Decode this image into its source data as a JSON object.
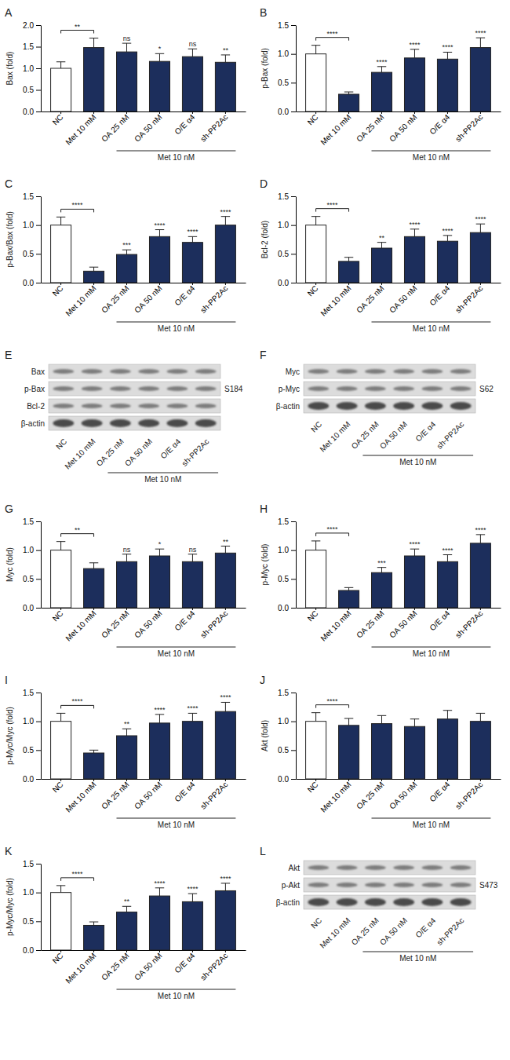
{
  "chart_data": [
    {
      "type": "bar",
      "title": "A",
      "y_label": "Bax (fold)",
      "categories": [
        "NC",
        "Met 10 mM",
        "OA 25 nM",
        "OA 50 nM",
        "O/E α4",
        "sh-PP2Ac"
      ],
      "values": [
        1.0,
        1.48,
        1.38,
        1.16,
        1.27,
        1.14
      ],
      "errors": [
        0.15,
        0.22,
        0.2,
        0.18,
        0.18,
        0.17
      ],
      "colors": [
        "#ffffff",
        "#1c2e5c",
        "#1c2e5c",
        "#1c2e5c",
        "#1c2e5c",
        "#1c2e5c"
      ],
      "ylim": [
        0,
        2
      ],
      "yticks": [
        {
          "value": 0,
          "label": "0.0"
        },
        0.5,
        {
          "value": 1,
          "label": "1.0"
        },
        1.5,
        {
          "value": 2,
          "label": "2.0"
        }
      ],
      "comparison": "**",
      "significance": [
        null,
        null,
        "ns",
        "*",
        "ns",
        "**"
      ],
      "group_label": "Met 10 nM"
    },
    {
      "type": "bar",
      "title": "B",
      "y_label": "p-Bax (fold)",
      "categories": [
        "NC",
        "Met 10 mM",
        "OA 25 nM",
        "OA 50 nM",
        "O/E α4",
        "sh-PP2Ac"
      ],
      "values": [
        1.0,
        0.3,
        0.68,
        0.93,
        0.91,
        1.11
      ],
      "errors": [
        0.15,
        0.04,
        0.1,
        0.15,
        0.12,
        0.17
      ],
      "colors": [
        "#ffffff",
        "#1c2e5c",
        "#1c2e5c",
        "#1c2e5c",
        "#1c2e5c",
        "#1c2e5c"
      ],
      "ylim": [
        0,
        1.5
      ],
      "yticks": [
        {
          "value": 0,
          "label": "0.0"
        },
        0.5,
        {
          "value": 1,
          "label": "1.0"
        },
        1.5
      ],
      "comparison": "****",
      "significance": [
        null,
        null,
        "****",
        "****",
        "****",
        "****"
      ],
      "group_label": "Met 10 nM"
    },
    {
      "type": "bar",
      "title": "C",
      "y_label": "p-Bax/Bax (fold)",
      "categories": [
        "NC",
        "Met 10 mM",
        "OA 25 nM",
        "OA 50 nM",
        "O/E α4",
        "sh-PP2Ac"
      ],
      "values": [
        1.0,
        0.2,
        0.49,
        0.8,
        0.7,
        1.0
      ],
      "errors": [
        0.14,
        0.07,
        0.08,
        0.12,
        0.1,
        0.15
      ],
      "colors": [
        "#ffffff",
        "#1c2e5c",
        "#1c2e5c",
        "#1c2e5c",
        "#1c2e5c",
        "#1c2e5c"
      ],
      "ylim": [
        0,
        1.5
      ],
      "yticks": [
        {
          "value": 0,
          "label": "0.0"
        },
        0.5,
        {
          "value": 1,
          "label": "1.0"
        },
        1.5
      ],
      "comparison": "****",
      "significance": [
        null,
        null,
        "***",
        "****",
        "****",
        "****"
      ],
      "group_label": "Met 10 nM"
    },
    {
      "type": "bar",
      "title": "D",
      "y_label": "Bcl-2 (fold)",
      "categories": [
        "NC",
        "Met 10 mM",
        "OA 25 nM",
        "OA 50 nM",
        "O/E α4",
        "sh-PP2Ac"
      ],
      "values": [
        1.0,
        0.37,
        0.6,
        0.8,
        0.72,
        0.87
      ],
      "errors": [
        0.15,
        0.07,
        0.1,
        0.13,
        0.1,
        0.15
      ],
      "colors": [
        "#ffffff",
        "#1c2e5c",
        "#1c2e5c",
        "#1c2e5c",
        "#1c2e5c",
        "#1c2e5c"
      ],
      "ylim": [
        0,
        1.5
      ],
      "yticks": [
        {
          "value": 0,
          "label": "0.0"
        },
        0.5,
        {
          "value": 1,
          "label": "1.0"
        },
        1.5
      ],
      "comparison": "****",
      "significance": [
        null,
        null,
        "**",
        "****",
        "****",
        "****"
      ],
      "group_label": "Met 10 nM"
    },
    {
      "type": "blot",
      "title": "E",
      "categories": [
        "NC",
        "Met 10 mM",
        "OA 25 nM",
        "OA 50 nM",
        "O/E α4",
        "sh-PP2Ac"
      ],
      "bands": [
        "Bax",
        "p-Bax",
        "Bcl-2",
        "β-actin"
      ],
      "annotation": "S184",
      "group_label": "Met 10 nM"
    },
    {
      "type": "blot",
      "title": "F",
      "categories": [
        "NC",
        "Met 10 mM",
        "OA 25 nM",
        "OA 50 nM",
        "O/E α4",
        "sh-PP2Ac"
      ],
      "bands": [
        "Myc",
        "p-Myc",
        "β-actin"
      ],
      "annotation": "S62",
      "group_label": "Met 10 nM"
    },
    {
      "type": "bar",
      "title": "G",
      "y_label": "Myc (fold)",
      "categories": [
        "NC",
        "Met 10 mM",
        "OA 25 nM",
        "OA 50 nM",
        "O/E α4",
        "sh-PP2Ac"
      ],
      "values": [
        1.0,
        0.68,
        0.8,
        0.9,
        0.8,
        0.95
      ],
      "errors": [
        0.15,
        0.1,
        0.13,
        0.12,
        0.13,
        0.12
      ],
      "colors": [
        "#ffffff",
        "#1c2e5c",
        "#1c2e5c",
        "#1c2e5c",
        "#1c2e5c",
        "#1c2e5c"
      ],
      "ylim": [
        0,
        1.5
      ],
      "yticks": [
        {
          "value": 0,
          "label": "0.0"
        },
        0.5,
        {
          "value": 1,
          "label": "1.0"
        },
        1.5
      ],
      "comparison": "**",
      "significance": [
        null,
        null,
        "ns",
        "*",
        "ns",
        "**"
      ],
      "group_label": "Met 10 nM"
    },
    {
      "type": "bar",
      "title": "H",
      "y_label": "p-Myc (fold)",
      "categories": [
        "NC",
        "Met 10 mM",
        "OA 25 nM",
        "OA 50 nM",
        "O/E α4",
        "sh-PP2Ac"
      ],
      "values": [
        1.0,
        0.3,
        0.61,
        0.9,
        0.8,
        1.12
      ],
      "errors": [
        0.16,
        0.05,
        0.09,
        0.12,
        0.12,
        0.15
      ],
      "colors": [
        "#ffffff",
        "#1c2e5c",
        "#1c2e5c",
        "#1c2e5c",
        "#1c2e5c",
        "#1c2e5c"
      ],
      "ylim": [
        0,
        1.5
      ],
      "yticks": [
        {
          "value": 0,
          "label": "0.0"
        },
        0.5,
        {
          "value": 1,
          "label": "1.0"
        },
        1.5
      ],
      "comparison": "****",
      "significance": [
        null,
        null,
        "***",
        "****",
        "****",
        "****"
      ],
      "group_label": "Met 10 nM"
    },
    {
      "type": "bar",
      "title": "I",
      "y_label": "p-Myc/Myc (fold)",
      "categories": [
        "NC",
        "Met 10 mM",
        "OA 25 nM",
        "OA 50 nM",
        "O/E α4",
        "sh-PP2Ac"
      ],
      "values": [
        1.0,
        0.45,
        0.75,
        0.97,
        1.0,
        1.17
      ],
      "errors": [
        0.14,
        0.05,
        0.12,
        0.15,
        0.14,
        0.16
      ],
      "colors": [
        "#ffffff",
        "#1c2e5c",
        "#1c2e5c",
        "#1c2e5c",
        "#1c2e5c",
        "#1c2e5c"
      ],
      "ylim": [
        0,
        1.5
      ],
      "yticks": [
        {
          "value": 0,
          "label": "0.0"
        },
        0.5,
        {
          "value": 1,
          "label": "1.0"
        },
        1.5
      ],
      "comparison": "****",
      "significance": [
        null,
        null,
        "**",
        "****",
        "****",
        "****"
      ],
      "group_label": "Met 10 nM"
    },
    {
      "type": "bar",
      "title": "J",
      "y_label": "Akt (fold)",
      "categories": [
        "NC",
        "Met 10 mM",
        "OA 25 nM",
        "OA 50 nM",
        "O/E α4",
        "sh-PP2Ac"
      ],
      "values": [
        1.0,
        0.93,
        0.96,
        0.91,
        1.04,
        1.0
      ],
      "errors": [
        0.15,
        0.12,
        0.14,
        0.13,
        0.15,
        0.14
      ],
      "colors": [
        "#ffffff",
        "#1c2e5c",
        "#1c2e5c",
        "#1c2e5c",
        "#1c2e5c",
        "#1c2e5c"
      ],
      "ylim": [
        0,
        1.5
      ],
      "yticks": [
        {
          "value": 0,
          "label": "0.0"
        },
        0.5,
        {
          "value": 1,
          "label": "1.0"
        },
        1.5
      ],
      "comparison": "****",
      "significance": [
        null,
        null,
        null,
        null,
        null,
        null
      ],
      "group_label": "Met 10 nM"
    },
    {
      "type": "bar",
      "title": "K",
      "y_label": "p-Myc/Myc (fold)",
      "categories": [
        "NC",
        "Met 10 mM",
        "OA 25 nM",
        "OA 50 nM",
        "O/E α4",
        "sh-PP2Ac"
      ],
      "values": [
        1.0,
        0.43,
        0.66,
        0.94,
        0.84,
        1.03
      ],
      "errors": [
        0.12,
        0.06,
        0.1,
        0.14,
        0.14,
        0.13
      ],
      "colors": [
        "#ffffff",
        "#1c2e5c",
        "#1c2e5c",
        "#1c2e5c",
        "#1c2e5c",
        "#1c2e5c"
      ],
      "ylim": [
        0,
        1.5
      ],
      "yticks": [
        {
          "value": 0,
          "label": "0.0"
        },
        0.5,
        {
          "value": 1,
          "label": "1.0"
        },
        1.5
      ],
      "comparison": "****",
      "significance": [
        null,
        null,
        "**",
        "****",
        "****",
        "****"
      ],
      "group_label": "Met 10 nM"
    },
    {
      "type": "blot",
      "title": "L",
      "categories": [
        "NC",
        "Met 10 mM",
        "OA 25 nM",
        "OA 50 nM",
        "O/E α4",
        "sh-PP2Ac"
      ],
      "bands": [
        "Akt",
        "p-Akt",
        "β-actin"
      ],
      "annotation": "S473",
      "group_label": "Met 10 nM"
    }
  ]
}
